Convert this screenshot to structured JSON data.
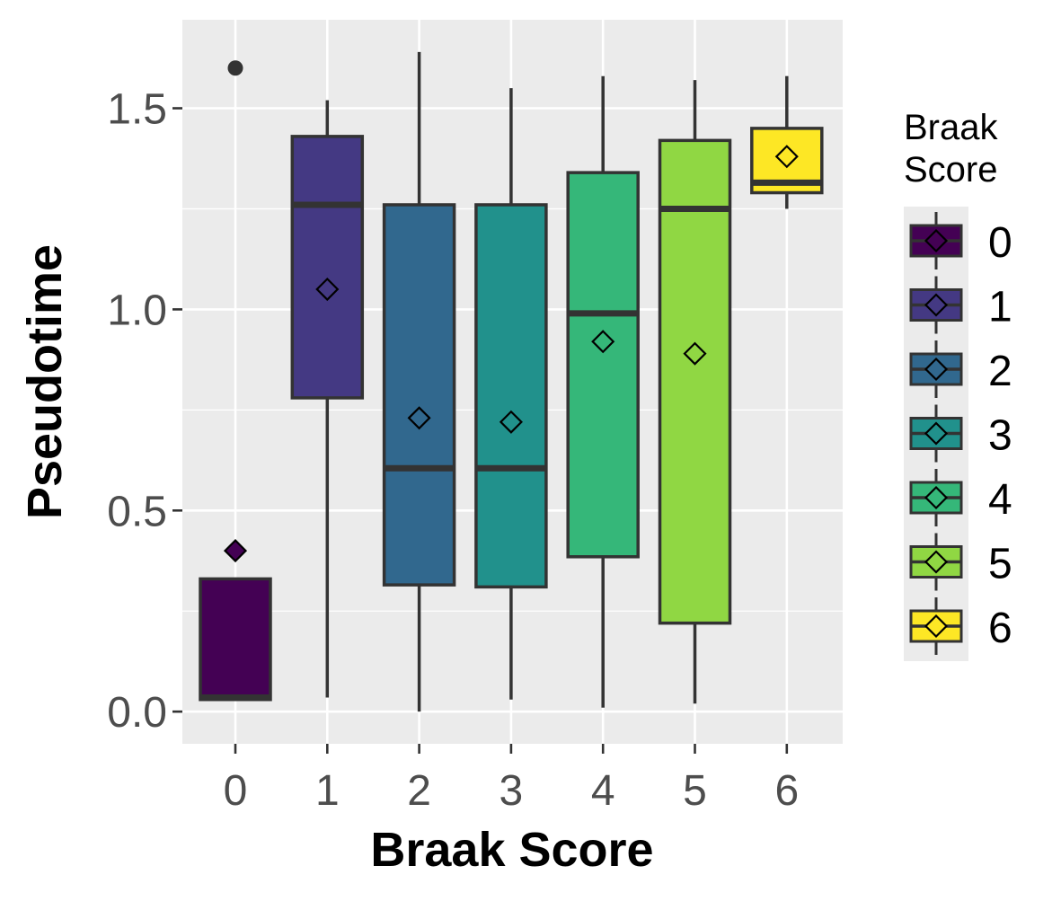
{
  "chart_data": {
    "type": "boxplot",
    "xlabel": "Braak Score",
    "ylabel": "Pseudotime",
    "ylim": [
      -0.08,
      1.72
    ],
    "yticks": [
      "0.0",
      "0.5",
      "1.0",
      "1.5"
    ],
    "ytick_values": [
      0.0,
      0.5,
      1.0,
      1.5
    ],
    "categories": [
      "0",
      "1",
      "2",
      "3",
      "4",
      "5",
      "6"
    ],
    "boxes": [
      {
        "category": "0",
        "whisker_low": 0.03,
        "q1": 0.03,
        "median": 0.035,
        "q3": 0.33,
        "whisker_high": 0.33,
        "mean": 0.4,
        "outliers": [
          1.6
        ]
      },
      {
        "category": "1",
        "whisker_low": 0.035,
        "q1": 0.78,
        "median": 1.26,
        "q3": 1.43,
        "whisker_high": 1.52,
        "mean": 1.05,
        "outliers": []
      },
      {
        "category": "2",
        "whisker_low": 0.0,
        "q1": 0.315,
        "median": 0.605,
        "q3": 1.26,
        "whisker_high": 1.64,
        "mean": 0.73,
        "outliers": []
      },
      {
        "category": "3",
        "whisker_low": 0.03,
        "q1": 0.31,
        "median": 0.605,
        "q3": 1.26,
        "whisker_high": 1.55,
        "mean": 0.72,
        "outliers": []
      },
      {
        "category": "4",
        "whisker_low": 0.01,
        "q1": 0.385,
        "median": 0.99,
        "q3": 1.34,
        "whisker_high": 1.58,
        "mean": 0.92,
        "outliers": []
      },
      {
        "category": "5",
        "whisker_low": 0.02,
        "q1": 0.22,
        "median": 1.25,
        "q3": 1.42,
        "whisker_high": 1.57,
        "mean": 0.89,
        "outliers": []
      },
      {
        "category": "6",
        "whisker_low": 1.25,
        "q1": 1.29,
        "median": 1.315,
        "q3": 1.45,
        "whisker_high": 1.58,
        "mean": 1.38,
        "outliers": []
      }
    ],
    "grid": true,
    "legend": {
      "title_lines": [
        "Braak",
        "Score"
      ],
      "placement": "right",
      "items": [
        {
          "label": "0",
          "color": "#440154"
        },
        {
          "label": "1",
          "color": "#443983"
        },
        {
          "label": "2",
          "color": "#31688e"
        },
        {
          "label": "3",
          "color": "#21918c"
        },
        {
          "label": "4",
          "color": "#35b779"
        },
        {
          "label": "5",
          "color": "#90d743"
        },
        {
          "label": "6",
          "color": "#fde725"
        }
      ]
    },
    "colors": {
      "panel_background": "#ebebeb",
      "grid": "#ffffff",
      "box_outline": "#333333",
      "outlier": "#333333"
    }
  }
}
